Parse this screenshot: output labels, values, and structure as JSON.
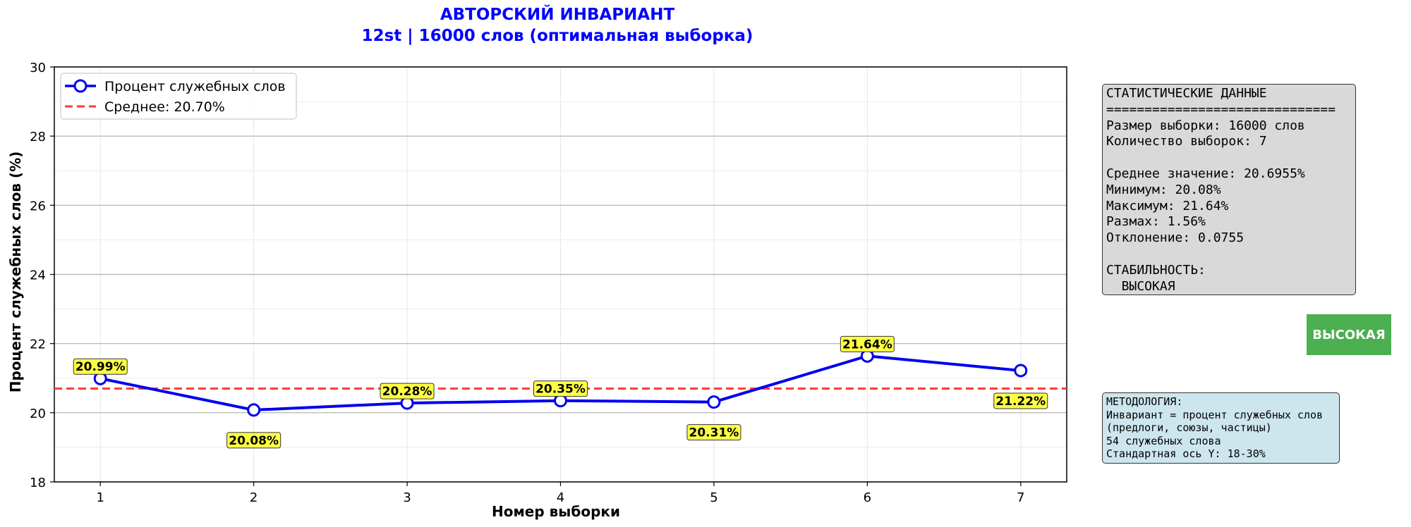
{
  "chart_data": {
    "type": "line",
    "title": "АВТОРСКИЙ ИНВАРИАНТ",
    "subtitle": "12st | 16000 слов (оптимальная выборка)",
    "xlabel": "Номер выборки",
    "ylabel": "Процент служебных слов (%)",
    "x": [
      1,
      2,
      3,
      4,
      5,
      6,
      7
    ],
    "xlim": [
      0.7,
      7.3
    ],
    "ylim": [
      18,
      30
    ],
    "yticks": [
      18,
      20,
      22,
      24,
      26,
      28,
      30
    ],
    "grid": true,
    "legend_position": "top-left",
    "series": [
      {
        "name": "Процент служебных слов",
        "values": [
          20.99,
          20.08,
          20.28,
          20.35,
          20.31,
          21.64,
          21.22
        ],
        "labels": [
          "20.99%",
          "20.08%",
          "20.28%",
          "20.35%",
          "20.31%",
          "21.64%",
          "21.22%"
        ],
        "color": "#0000ee"
      }
    ],
    "mean": {
      "name": "Среднее: 20.70%",
      "value": 20.7,
      "color": "#ff3b3b"
    }
  },
  "stats": {
    "lines": [
      "СТАТИСТИЧЕСКИЕ ДАННЫЕ",
      "==============================",
      "Размер выборки: 16000 слов",
      "Количество выборок: 7",
      "",
      "Среднее значение: 20.6955%",
      "Минимум: 20.08%",
      "Максимум: 21.64%",
      "Размах: 1.56%",
      "Отклонение: 0.0755",
      "",
      "СТАБИЛЬНОСТЬ:",
      "  ВЫСОКАЯ"
    ]
  },
  "badge": {
    "label": "ВЫСОКАЯ",
    "color": "#4caf50"
  },
  "methodology": {
    "lines": [
      "МЕТОДОЛОГИЯ:",
      "Инвариант = процент служебных слов",
      "(предлоги, союзы, частицы)",
      "54 служебных слова",
      "Стандартная ось Y: 18-30%"
    ]
  },
  "colors": {
    "title": "#0000ff",
    "stats_bg": "#d9d9d9",
    "method_bg": "#cde6ee",
    "label_bg": "#ffff44"
  }
}
